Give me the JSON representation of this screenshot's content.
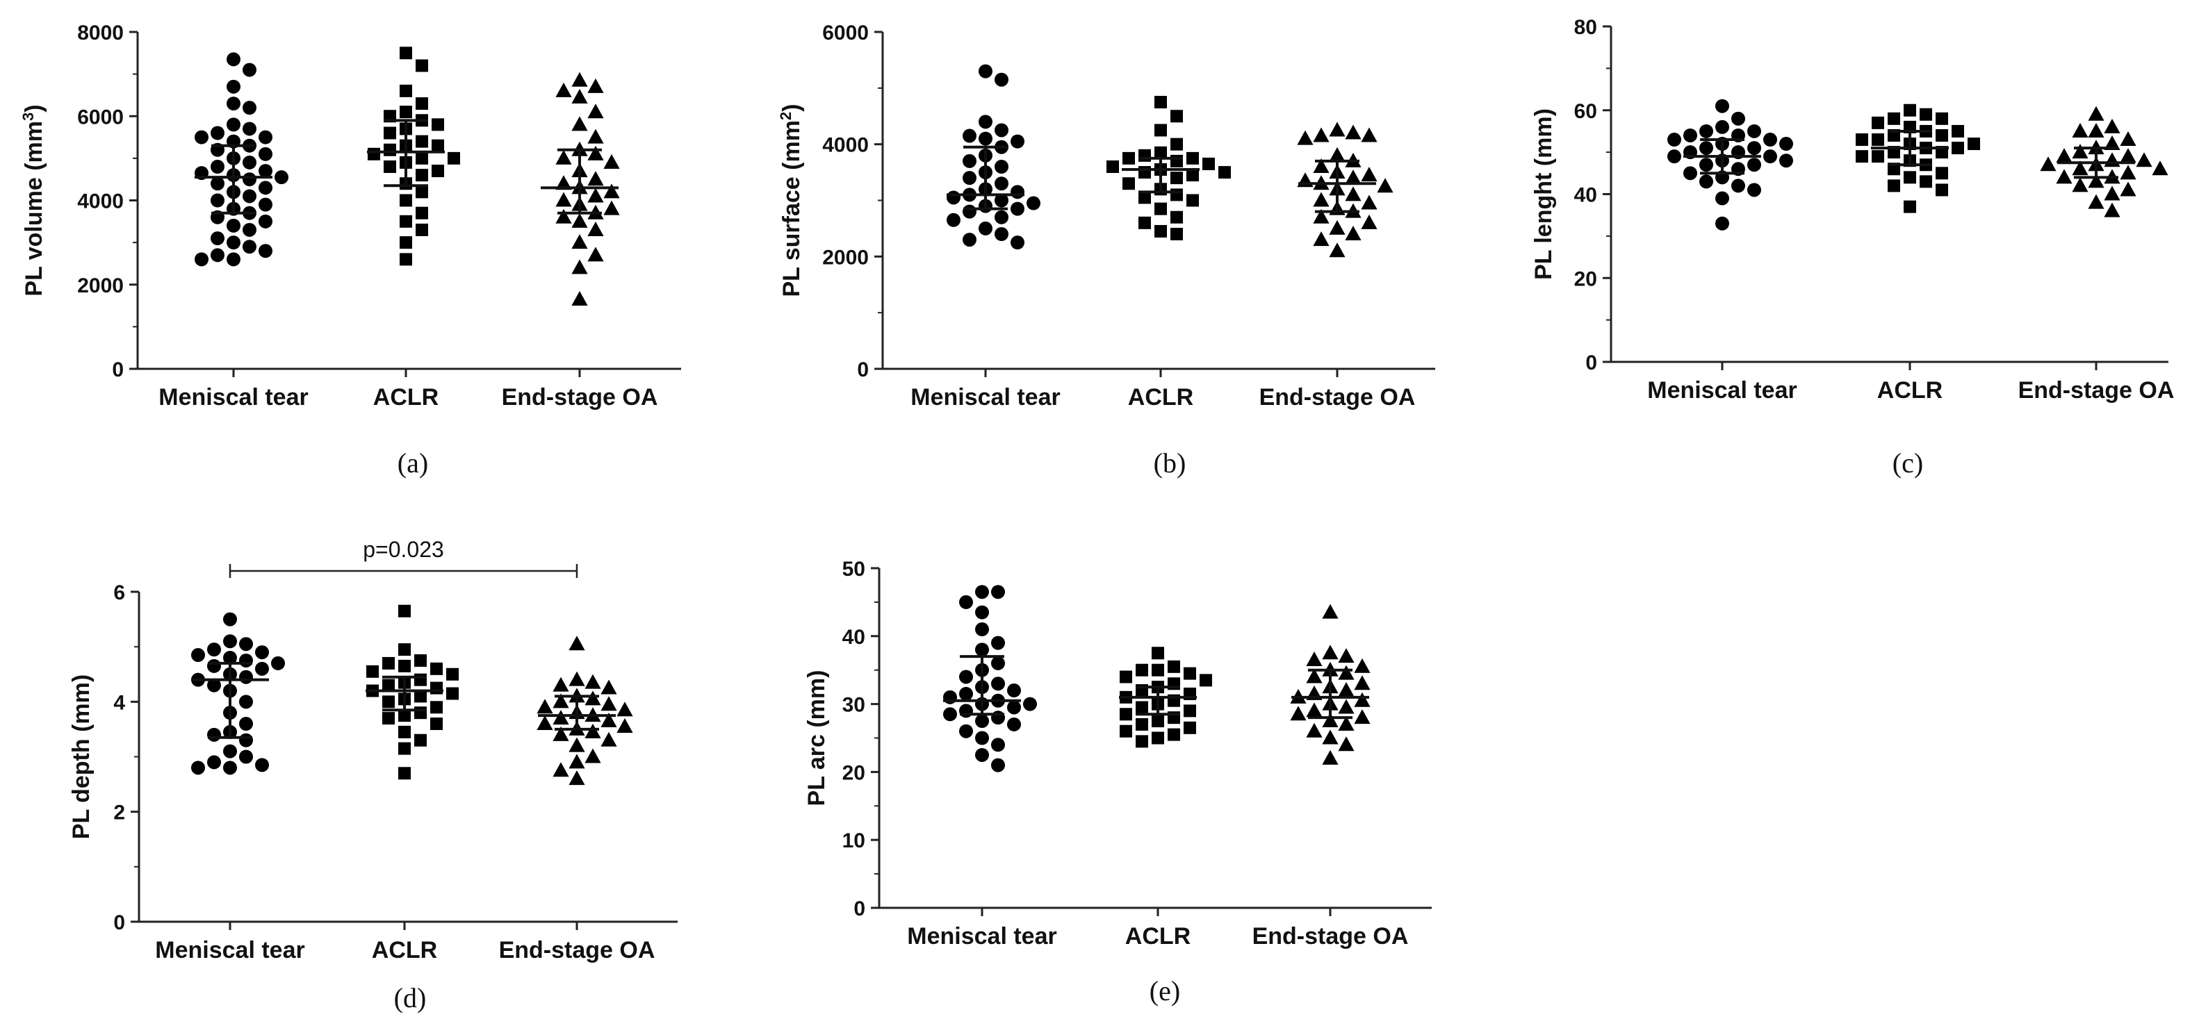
{
  "chart_data": [
    {
      "panel": "(a)",
      "type": "scatter",
      "ylabel": "PL volume (mm",
      "ylabel_sup": "3",
      "ylabel_end": ")",
      "ylim": [
        0,
        8000
      ],
      "yticks": [
        0,
        2000,
        4000,
        6000,
        8000
      ],
      "categories": [
        "Meniscal tear",
        "ACLR",
        "End-stage OA"
      ],
      "series": [
        {
          "name": "Meniscal tear",
          "marker": "circle",
          "mean": 4550,
          "err_low": 3700,
          "err_high": 5300,
          "values": [
            7350,
            7100,
            6700,
            6300,
            6200,
            5800,
            5700,
            5600,
            5500,
            5500,
            5400,
            5300,
            5200,
            5100,
            5000,
            4900,
            4800,
            4700,
            4650,
            4600,
            4550,
            4500,
            4400,
            4300,
            4200,
            4100,
            4000,
            3900,
            3800,
            3700,
            3600,
            3500,
            3400,
            3300,
            3100,
            3000,
            2900,
            2800,
            2700,
            2600,
            2600
          ]
        },
        {
          "name": "ACLR",
          "marker": "square",
          "mean": 5150,
          "err_low": 4350,
          "err_high": 5900,
          "values": [
            7500,
            7200,
            6600,
            6300,
            6100,
            6000,
            5900,
            5800,
            5700,
            5600,
            5400,
            5300,
            5300,
            5200,
            5100,
            5000,
            5000,
            4900,
            4800,
            4700,
            4600,
            4400,
            4200,
            4000,
            3700,
            3500,
            3300,
            3000,
            2600
          ]
        },
        {
          "name": "End-stage OA",
          "marker": "triangle",
          "mean": 4300,
          "err_low": 3700,
          "err_high": 5200,
          "values": [
            6850,
            6700,
            6600,
            6450,
            6100,
            5800,
            5500,
            5200,
            5100,
            5000,
            4900,
            4700,
            4500,
            4400,
            4300,
            4200,
            4100,
            4000,
            3900,
            3800,
            3700,
            3600,
            3500,
            3300,
            3000,
            2700,
            2400,
            1650
          ]
        }
      ]
    },
    {
      "panel": "(b)",
      "type": "scatter",
      "ylabel": "PL surface (mm",
      "ylabel_sup": "2",
      "ylabel_end": ")",
      "ylim": [
        0,
        6000
      ],
      "yticks": [
        0,
        2000,
        4000,
        6000
      ],
      "categories": [
        "Meniscal tear",
        "ACLR",
        "End-stage OA"
      ],
      "series": [
        {
          "name": "Meniscal tear",
          "marker": "circle",
          "mean": 3100,
          "err_low": 2850,
          "err_high": 3950,
          "values": [
            5300,
            5150,
            4400,
            4250,
            4150,
            4100,
            4050,
            3950,
            3800,
            3700,
            3600,
            3500,
            3400,
            3300,
            3200,
            3150,
            3100,
            3050,
            3000,
            2950,
            2900,
            2850,
            2800,
            2700,
            2650,
            2500,
            2400,
            2300,
            2250
          ]
        },
        {
          "name": "ACLR",
          "marker": "square",
          "mean": 3550,
          "err_low": 3150,
          "err_high": 3750,
          "values": [
            4750,
            4500,
            4250,
            4000,
            3850,
            3800,
            3750,
            3750,
            3700,
            3650,
            3600,
            3550,
            3500,
            3500,
            3450,
            3400,
            3300,
            3200,
            3100,
            3050,
            3000,
            2850,
            2700,
            2600,
            2450,
            2400
          ]
        },
        {
          "name": "End-stage OA",
          "marker": "triangle",
          "mean": 3300,
          "err_low": 2800,
          "err_high": 3700,
          "values": [
            4250,
            4200,
            4150,
            4150,
            4100,
            3800,
            3700,
            3600,
            3500,
            3450,
            3400,
            3350,
            3300,
            3250,
            3200,
            3100,
            3000,
            2950,
            2850,
            2800,
            2700,
            2600,
            2500,
            2400,
            2300,
            2100
          ]
        }
      ]
    },
    {
      "panel": "(c)",
      "type": "scatter",
      "ylabel": "PL lenght (mm)",
      "ylabel_sup": "",
      "ylabel_end": "",
      "ylim": [
        0,
        80
      ],
      "yticks": [
        0,
        20,
        40,
        60,
        80
      ],
      "categories": [
        "Meniscal tear",
        "ACLR",
        "End-stage OA"
      ],
      "series": [
        {
          "name": "Meniscal tear",
          "marker": "circle",
          "mean": 49,
          "err_low": 45,
          "err_high": 53,
          "values": [
            61,
            58,
            56,
            55,
            55,
            54,
            54,
            53,
            53,
            52,
            52,
            51,
            51,
            50,
            50,
            49,
            49,
            48,
            48,
            47,
            47,
            46,
            45,
            44,
            43,
            42,
            41,
            39,
            33
          ]
        },
        {
          "name": "ACLR",
          "marker": "square",
          "mean": 51,
          "err_low": 47,
          "err_high": 55,
          "values": [
            60,
            59,
            58,
            58,
            57,
            56,
            55,
            55,
            54,
            54,
            53,
            53,
            52,
            52,
            51,
            51,
            50,
            50,
            49,
            49,
            48,
            47,
            46,
            45,
            44,
            43,
            42,
            41,
            37
          ]
        },
        {
          "name": "End-stage OA",
          "marker": "triangle",
          "mean": 47.5,
          "err_low": 44,
          "err_high": 51,
          "values": [
            59,
            56,
            55,
            55,
            53,
            52,
            51,
            50,
            49,
            49,
            48,
            48,
            47,
            47,
            46,
            46,
            45,
            44,
            44,
            43,
            42,
            41,
            40,
            38,
            36
          ]
        }
      ]
    },
    {
      "panel": "(d)",
      "type": "scatter",
      "ylabel": "PL depth (mm)",
      "ylabel_sup": "",
      "ylabel_end": "",
      "ylim": [
        0,
        6
      ],
      "yticks": [
        0,
        2,
        4,
        6
      ],
      "annotation": "p=0.023",
      "categories": [
        "Meniscal tear",
        "ACLR",
        "End-stage OA"
      ],
      "series": [
        {
          "name": "Meniscal tear",
          "marker": "circle",
          "mean": 4.4,
          "err_low": 3.35,
          "err_high": 4.7,
          "values": [
            5.5,
            5.1,
            5.05,
            4.95,
            4.9,
            4.85,
            4.8,
            4.75,
            4.7,
            4.65,
            4.6,
            4.5,
            4.45,
            4.4,
            4.3,
            4.2,
            4.0,
            3.8,
            3.6,
            3.45,
            3.4,
            3.3,
            3.1,
            3.0,
            2.9,
            2.85,
            2.8,
            2.8
          ]
        },
        {
          "name": "ACLR",
          "marker": "square",
          "mean": 4.2,
          "err_low": 3.85,
          "err_high": 4.45,
          "values": [
            5.65,
            4.95,
            4.75,
            4.7,
            4.65,
            4.6,
            4.55,
            4.5,
            4.4,
            4.35,
            4.3,
            4.25,
            4.2,
            4.15,
            4.1,
            4.05,
            4.0,
            3.9,
            3.8,
            3.75,
            3.7,
            3.6,
            3.45,
            3.3,
            3.15,
            2.7
          ]
        },
        {
          "name": "End-stage OA",
          "marker": "triangle",
          "mean": 3.75,
          "err_low": 3.5,
          "err_high": 4.1,
          "values": [
            5.05,
            4.4,
            4.35,
            4.3,
            4.25,
            4.1,
            4.05,
            4.0,
            3.95,
            3.9,
            3.85,
            3.8,
            3.75,
            3.7,
            3.65,
            3.6,
            3.55,
            3.5,
            3.45,
            3.4,
            3.3,
            3.2,
            3.0,
            2.9,
            2.75,
            2.6
          ]
        }
      ]
    },
    {
      "panel": "(e)",
      "type": "scatter",
      "ylabel": "PL arc (mm)",
      "ylabel_sup": "",
      "ylabel_end": "",
      "ylim": [
        0,
        50
      ],
      "yticks": [
        0,
        10,
        20,
        30,
        40,
        50
      ],
      "categories": [
        "Meniscal tear",
        "ACLR",
        "End-stage OA"
      ],
      "series": [
        {
          "name": "Meniscal tear",
          "marker": "circle",
          "mean": 30.5,
          "err_low": 28.5,
          "err_high": 37,
          "values": [
            46.5,
            46.5,
            45,
            43.5,
            41,
            39,
            38,
            36,
            35,
            34,
            33,
            32.5,
            32,
            31.5,
            31,
            30.5,
            30,
            30,
            29.5,
            29,
            28.5,
            28,
            27.5,
            27,
            26,
            25,
            24,
            22.5,
            21
          ]
        },
        {
          "name": "ACLR",
          "marker": "square",
          "mean": 31,
          "err_low": 28.5,
          "err_high": 32.5,
          "values": [
            37.5,
            35.5,
            35,
            35,
            34.5,
            34,
            33.5,
            33,
            32.5,
            32,
            31.5,
            31,
            30.5,
            30,
            29.5,
            29,
            28.5,
            28,
            27.5,
            27,
            26.5,
            26,
            25.5,
            25,
            24.5
          ]
        },
        {
          "name": "End-stage OA",
          "marker": "triangle",
          "mean": 31,
          "err_low": 28,
          "err_high": 35,
          "values": [
            43.5,
            37.5,
            37,
            36.5,
            35.5,
            35,
            34.5,
            34,
            33,
            32.5,
            32,
            31.5,
            31,
            30.5,
            30,
            29.5,
            29,
            28.5,
            28,
            27.5,
            27,
            26,
            25,
            24,
            22
          ]
        }
      ]
    }
  ]
}
